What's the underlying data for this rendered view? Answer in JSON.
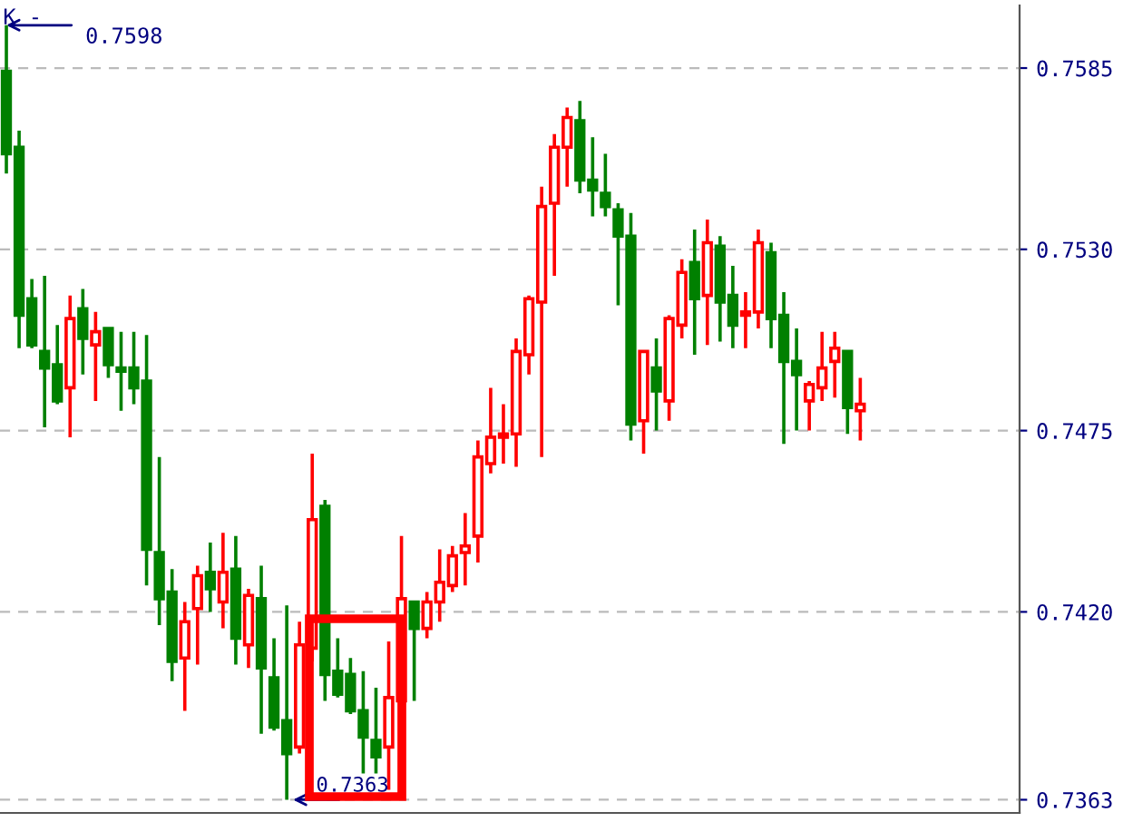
{
  "chart_data": {
    "type": "candlestick",
    "categories": [
      null,
      null,
      null,
      null,
      null,
      null,
      null,
      null,
      null,
      null,
      null,
      null,
      null,
      null,
      null,
      null,
      null,
      null,
      null,
      null,
      null,
      null,
      null,
      null,
      null,
      null,
      null,
      null,
      null,
      null,
      null,
      null,
      null,
      null,
      null,
      null,
      null,
      null,
      null,
      null,
      null,
      null,
      null,
      null,
      null,
      null,
      null,
      null,
      null,
      null,
      null,
      null,
      null,
      null,
      null,
      null,
      null,
      null,
      null,
      null,
      null,
      null,
      null,
      null,
      null,
      null,
      null,
      null,
      null,
      null,
      null,
      null,
      null,
      null,
      null,
      null,
      null,
      null,
      null,
      null
    ],
    "ohlc": [
      [
        0.7584,
        0.7598,
        0.7553,
        0.7559
      ],
      [
        0.7561,
        0.7566,
        0.75,
        0.751
      ],
      [
        0.7515,
        0.7521,
        0.75,
        0.7501
      ],
      [
        0.7499,
        0.7522,
        0.7476,
        0.7494
      ],
      [
        0.7495,
        0.7507,
        0.7483,
        0.7484
      ],
      [
        0.7488,
        0.7516,
        0.7473,
        0.7509
      ],
      [
        0.7512,
        0.7518,
        0.7492,
        0.7503
      ],
      [
        0.7501,
        0.7511,
        0.7484,
        0.7505
      ],
      [
        0.7506,
        0.7506,
        0.7491,
        0.7495
      ],
      [
        0.7494,
        0.7505,
        0.7481,
        0.7493
      ],
      [
        0.7494,
        0.7505,
        0.7483,
        0.7488
      ],
      [
        0.749,
        0.7504,
        0.7428,
        0.7439
      ],
      [
        0.7438,
        0.7467,
        0.7416,
        0.7424
      ],
      [
        0.7426,
        0.7433,
        0.7399,
        0.7405
      ],
      [
        0.7406,
        0.7423,
        0.739,
        0.7417
      ],
      [
        0.7421,
        0.7434,
        0.7404,
        0.7431
      ],
      [
        0.7432,
        0.7441,
        0.742,
        0.7427
      ],
      [
        0.7423,
        0.7444,
        0.7415,
        0.7432
      ],
      [
        0.7433,
        0.7443,
        0.7404,
        0.7412
      ],
      [
        0.741,
        0.7427,
        0.7403,
        0.7425
      ],
      [
        0.7424,
        0.7434,
        0.7383,
        0.7403
      ],
      [
        0.74,
        0.7412,
        0.7384,
        0.7385
      ],
      [
        0.7387,
        0.7422,
        0.7363,
        0.7377
      ],
      [
        0.7379,
        0.7417,
        0.7377,
        0.741
      ],
      [
        0.7409,
        0.7468,
        0.7405,
        0.7448
      ],
      [
        0.7452,
        0.7454,
        0.7393,
        0.7401
      ],
      [
        0.7402,
        0.7412,
        0.7394,
        0.7395
      ],
      [
        0.7401,
        0.7406,
        0.7389,
        0.739
      ],
      [
        0.739,
        0.7402,
        0.7371,
        0.7382
      ],
      [
        0.7381,
        0.7397,
        0.7371,
        0.7376
      ],
      [
        0.7379,
        0.7411,
        0.7366,
        0.7394
      ],
      [
        0.7393,
        0.7443,
        0.7393,
        0.7424
      ],
      [
        0.7423,
        0.7423,
        0.7393,
        0.7415
      ],
      [
        0.7415,
        0.7426,
        0.7412,
        0.7423
      ],
      [
        0.7423,
        0.7439,
        0.7417,
        0.7429
      ],
      [
        0.7428,
        0.744,
        0.7426,
        0.7437
      ],
      [
        0.7438,
        0.745,
        0.7428,
        0.744
      ],
      [
        0.7443,
        0.7472,
        0.7435,
        0.7467
      ],
      [
        0.7465,
        0.7488,
        0.7462,
        0.7473
      ],
      [
        0.7473,
        0.7483,
        0.7465,
        0.7474
      ],
      [
        0.7474,
        0.7503,
        0.7464,
        0.7499
      ],
      [
        0.7498,
        0.7516,
        0.7492,
        0.7515
      ],
      [
        0.7514,
        0.7549,
        0.7467,
        0.7543
      ],
      [
        0.7544,
        0.7565,
        0.7522,
        0.7561
      ],
      [
        0.7561,
        0.7573,
        0.7549,
        0.757
      ],
      [
        0.7569,
        0.7575,
        0.7547,
        0.7551
      ],
      [
        0.7551,
        0.7564,
        0.754,
        0.7548
      ],
      [
        0.7547,
        0.7559,
        0.754,
        0.7543
      ],
      [
        0.7542,
        0.7544,
        0.7513,
        0.7534
      ],
      [
        0.7534,
        0.7541,
        0.7472,
        0.7477
      ],
      [
        0.7478,
        0.7499,
        0.7468,
        0.7499
      ],
      [
        0.7494,
        0.7503,
        0.7475,
        0.7487
      ],
      [
        0.7484,
        0.751,
        0.7478,
        0.7509
      ],
      [
        0.7507,
        0.7527,
        0.7503,
        0.7523
      ],
      [
        0.7526,
        0.7536,
        0.7498,
        0.7515
      ],
      [
        0.7516,
        0.7539,
        0.7501,
        0.7532
      ],
      [
        0.7531,
        0.7534,
        0.7502,
        0.7514
      ],
      [
        0.7516,
        0.7525,
        0.75,
        0.7507
      ],
      [
        0.751,
        0.7517,
        0.75,
        0.7511
      ],
      [
        0.7511,
        0.7536,
        0.7506,
        0.7532
      ],
      [
        0.7529,
        0.7532,
        0.75,
        0.7509
      ],
      [
        0.751,
        0.7517,
        0.7471,
        0.7496
      ],
      [
        0.7496,
        0.7506,
        0.7475,
        0.7492
      ],
      [
        0.7484,
        0.749,
        0.7475,
        0.7489
      ],
      [
        0.7488,
        0.7505,
        0.7484,
        0.7494
      ],
      [
        0.7496,
        0.7505,
        0.7485,
        0.75
      ],
      [
        0.7499,
        0.7499,
        0.7474,
        0.7482
      ],
      [
        0.7481,
        0.7491,
        0.7472,
        0.7483
      ],
      null,
      null,
      null,
      null,
      null,
      null,
      null,
      null,
      null,
      null,
      null,
      null
    ],
    "colors": [
      "#008000",
      "#008000",
      "#008000",
      "#008000",
      "#008000",
      "#ff0000",
      "#008000",
      "#ff0000",
      "#008000",
      "#008000",
      "#008000",
      "#008000",
      "#008000",
      "#008000",
      "#ff0000",
      "#ff0000",
      "#008000",
      "#ff0000",
      "#008000",
      "#ff0000",
      "#008000",
      "#008000",
      "#008000",
      "#ff0000",
      "#ff0000",
      "#008000",
      "#008000",
      "#008000",
      "#008000",
      "#008000",
      "#ff0000",
      "#ff0000",
      "#008000",
      "#ff0000",
      "#ff0000",
      "#ff0000",
      "#ff0000",
      "#ff0000",
      "#ff0000",
      "#ff0000",
      "#ff0000",
      "#ff0000",
      "#ff0000",
      "#ff0000",
      "#ff0000",
      "#008000",
      "#008000",
      "#008000",
      "#008000",
      "#008000",
      "#ff0000",
      "#008000",
      "#ff0000",
      "#ff0000",
      "#008000",
      "#ff0000",
      "#008000",
      "#008000",
      "#ff0000",
      "#ff0000",
      "#008000",
      "#008000",
      "#008000",
      "#ff0000",
      "#ff0000",
      "#ff0000",
      "#008000",
      "#ff0000",
      null,
      null,
      null,
      null,
      null,
      null,
      null,
      null,
      null,
      null,
      null,
      null
    ],
    "ylim": [
      0.7359,
      0.7604
    ],
    "yticks": [
      0.7363,
      {
        "value": 0.742,
        "label": "0.7420"
      },
      0.7475,
      {
        "value": 0.753,
        "label": "0.7530"
      },
      0.7585
    ],
    "grid": "y",
    "tick_labels": "y",
    "annotations": [
      "K -",
      "0.7598",
      "0.7363"
    ]
  }
}
